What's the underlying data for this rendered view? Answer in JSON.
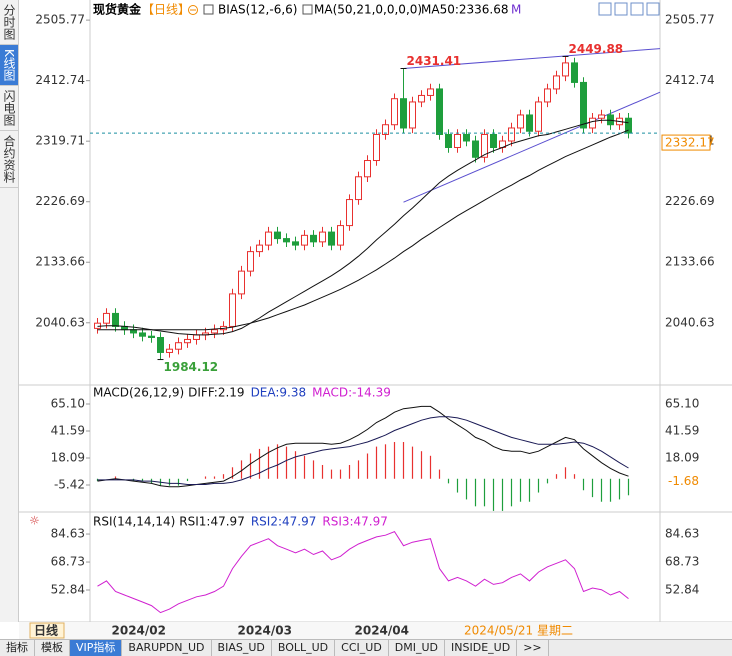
{
  "sidebar": [
    "分时图",
    "K线图",
    "闪电图",
    "合约资料"
  ],
  "header": {
    "symbol": "现货黄金",
    "period": "【日线】",
    "bias": "BIAS(12,-6,6)",
    "ma": "MA(50,21,0,0,0,0)",
    "ma50": "MA50:2336.68",
    "m": "M"
  },
  "chart_data": [
    {
      "type": "candlestick",
      "categories": [
        null,
        null,
        "2024/02",
        null,
        null,
        null,
        null,
        null,
        null,
        null,
        null,
        null,
        null,
        null,
        null,
        null,
        "2024/03",
        null,
        null,
        null,
        null,
        null,
        null,
        null,
        null,
        null,
        null,
        null,
        null,
        "2024/04",
        null,
        null,
        null,
        null,
        null,
        null,
        null,
        null,
        null,
        null,
        null,
        null,
        null,
        null,
        null,
        null,
        null,
        null,
        null,
        null,
        null,
        null,
        null,
        null,
        null,
        null,
        null,
        null,
        null,
        null
      ],
      "open": [
        2032,
        2040,
        2055,
        2035,
        2030,
        2025,
        2020,
        2018,
        1995,
        2000,
        2010,
        2015,
        2022,
        2025,
        2030,
        2035,
        2085,
        2120,
        2150,
        2160,
        2180,
        2170,
        2165,
        2160,
        2175,
        2165,
        2180,
        2160,
        2190,
        2230,
        2265,
        2290,
        2330,
        2345,
        2385,
        2340,
        2380,
        2390,
        2400,
        2330,
        2310,
        2330,
        2320,
        2295,
        2330,
        2310,
        2320,
        2340,
        2360,
        2335,
        2380,
        2400,
        2420,
        2440,
        2410,
        2340,
        2355,
        2360,
        2345,
        2355
      ],
      "high": [
        2048,
        2063,
        2063,
        2043,
        2038,
        2033,
        2028,
        2026,
        2008,
        2018,
        2023,
        2030,
        2033,
        2038,
        2043,
        2093,
        2128,
        2158,
        2168,
        2188,
        2188,
        2178,
        2173,
        2183,
        2183,
        2188,
        2188,
        2198,
        2238,
        2273,
        2298,
        2338,
        2353,
        2393,
        2431.41,
        2388,
        2398,
        2408,
        2408,
        2338,
        2338,
        2338,
        2328,
        2338,
        2338,
        2328,
        2348,
        2368,
        2368,
        2388,
        2408,
        2428,
        2449.88,
        2448,
        2418,
        2363,
        2368,
        2368,
        2363,
        2363
      ],
      "low": [
        2024,
        2032,
        2027,
        2022,
        2017,
        2012,
        2010,
        1984.12,
        1987,
        1992,
        2002,
        2007,
        2014,
        2017,
        2022,
        2027,
        2077,
        2112,
        2142,
        2152,
        2162,
        2157,
        2152,
        2152,
        2157,
        2157,
        2152,
        2152,
        2182,
        2222,
        2257,
        2282,
        2322,
        2337,
        2332,
        2332,
        2372,
        2382,
        2322,
        2302,
        2302,
        2312,
        2287,
        2287,
        2302,
        2302,
        2312,
        2332,
        2327,
        2327,
        2372,
        2392,
        2412,
        2402,
        2332,
        2332,
        2347,
        2337,
        2337,
        2324
      ],
      "close": [
        2040,
        2055,
        2035,
        2030,
        2025,
        2020,
        2018,
        1995,
        2000,
        2010,
        2015,
        2022,
        2025,
        2030,
        2035,
        2085,
        2120,
        2150,
        2160,
        2180,
        2170,
        2165,
        2160,
        2175,
        2165,
        2180,
        2160,
        2190,
        2230,
        2265,
        2290,
        2330,
        2345,
        2385,
        2340,
        2380,
        2390,
        2400,
        2330,
        2310,
        2330,
        2320,
        2295,
        2330,
        2310,
        2320,
        2340,
        2360,
        2335,
        2380,
        2400,
        2420,
        2440,
        2410,
        2340,
        2355,
        2360,
        2345,
        2355,
        2332.17
      ],
      "up_color": "#e8312f",
      "down_color": "#1e9e3c",
      "lines": [
        {
          "color": "#111111",
          "values": [
            2035,
            2036,
            2036,
            2035,
            2034,
            2032,
            2030,
            2028,
            2026,
            2024,
            2023,
            2022,
            2022,
            2023,
            2024,
            2027,
            2032,
            2040,
            2048,
            2057,
            2065,
            2073,
            2081,
            2089,
            2097,
            2105,
            2113,
            2122,
            2132,
            2143,
            2155,
            2168,
            2180,
            2192,
            2205,
            2217,
            2230,
            2243,
            2256,
            2266,
            2275,
            2283,
            2291,
            2299,
            2305,
            2310,
            2316,
            2320,
            2324,
            2328,
            2330,
            2334,
            2338,
            2342,
            2346,
            2350,
            2352,
            2352,
            2350,
            2348
          ]
        },
        {
          "color": "#111111",
          "values": [
            2030,
            2030,
            2030,
            2030,
            2030,
            2030,
            2030,
            2030,
            2030,
            2030,
            2030,
            2030,
            2030,
            2031,
            2032,
            2034,
            2037,
            2040,
            2044,
            2048,
            2053,
            2058,
            2063,
            2068,
            2074,
            2080,
            2086,
            2092,
            2099,
            2106,
            2114,
            2122,
            2131,
            2140,
            2150,
            2159,
            2169,
            2178,
            2187,
            2196,
            2205,
            2213,
            2221,
            2229,
            2237,
            2245,
            2252,
            2260,
            2267,
            2275,
            2282,
            2289,
            2296,
            2302,
            2308,
            2314,
            2320,
            2326,
            2331,
            2336.68
          ]
        }
      ],
      "trendlines": [
        {
          "color": "#5a4fcf",
          "x": [
            34,
            62.5
          ],
          "y": [
            2431.41,
            2462
          ]
        },
        {
          "color": "#5a4fcf",
          "x": [
            34,
            62.5
          ],
          "y": [
            2226,
            2395
          ]
        }
      ],
      "annotations": [
        {
          "text": "2431.41",
          "x": 34,
          "y": 2431.41,
          "color": "#e8312f",
          "position": "above"
        },
        {
          "text": "2449.88",
          "x": 52,
          "y": 2449.88,
          "color": "#e8312f",
          "position": "above"
        },
        {
          "text": "1984.12",
          "x": 7,
          "y": 1984.12,
          "color": "#3aa03a",
          "position": "below"
        }
      ],
      "last": 2332.17,
      "last_color": "#f08a00",
      "ylim": [
        1945,
        2529
      ],
      "yticks": [
        2505.77,
        2412.74,
        2319.71,
        2226.69,
        2133.66,
        2040.63
      ]
    },
    {
      "type": "macd",
      "title": "MACD(26,12,9)",
      "legend": [
        {
          "text": "DIFF:2.19",
          "color": "#111111"
        },
        {
          "text": "DEA:9.38",
          "color": "#1f3fbf"
        },
        {
          "text": "MACD:-14.39",
          "color": "#d020d0"
        }
      ],
      "series": [
        {
          "color": "#111111",
          "values": [
            -2,
            -1,
            0,
            -1,
            -2,
            -3,
            -4,
            -6,
            -7,
            -7,
            -6,
            -5,
            -4,
            -3,
            -2,
            2,
            7,
            13,
            18,
            23,
            27,
            30,
            31,
            31,
            31,
            31,
            30,
            31,
            34,
            38,
            43,
            49,
            53,
            58,
            61,
            62,
            63,
            63,
            58,
            52,
            47,
            42,
            36,
            33,
            28,
            25,
            24,
            24,
            22,
            24,
            28,
            32,
            36,
            34,
            26,
            20,
            14,
            9,
            5,
            2.19
          ]
        },
        {
          "color": "#1a1a55",
          "values": [
            -1,
            -1,
            -1,
            -1,
            -1,
            -2,
            -2,
            -3,
            -4,
            -4,
            -5,
            -5,
            -5,
            -4,
            -4,
            -3,
            -1,
            2,
            5,
            9,
            12,
            16,
            19,
            21,
            23,
            25,
            26,
            27,
            28,
            30,
            32,
            35,
            38,
            42,
            45,
            48,
            51,
            53,
            54,
            54,
            53,
            51,
            48,
            45,
            42,
            39,
            36,
            34,
            32,
            30,
            30,
            30,
            31,
            32,
            31,
            28,
            24,
            19,
            14,
            9.38
          ]
        }
      ],
      "histogram": {
        "up_color": "#e8312f",
        "down_color": "#1e9e3c",
        "values": [
          -2,
          0,
          2,
          0,
          -2,
          -2,
          -4,
          -6,
          -6,
          -6,
          -2,
          0,
          2,
          2,
          4,
          10,
          16,
          22,
          26,
          28,
          30,
          28,
          24,
          20,
          16,
          12,
          8,
          8,
          12,
          16,
          22,
          28,
          30,
          32,
          32,
          28,
          24,
          20,
          8,
          -4,
          -12,
          -18,
          -24,
          -24,
          -28,
          -28,
          -24,
          -20,
          -20,
          -12,
          -4,
          4,
          10,
          4,
          -10,
          -16,
          -20,
          -20,
          -18,
          -14.39
        ]
      },
      "last": -1.68,
      "last_color": "#f08a00",
      "ylim": [
        -27.2,
        71.2
      ],
      "yticks": [
        {
          "value": 65.1,
          "label": "65.10"
        },
        41.59,
        18.09,
        -5.42
      ]
    },
    {
      "type": "line",
      "title": "RSI(14,14,14)",
      "legend": [
        {
          "text": "RSI1:47.97",
          "color": "#111111"
        },
        {
          "text": "RSI2:47.97",
          "color": "#1f3fbf"
        },
        {
          "text": "RSI3:47.97",
          "color": "#d020d0"
        }
      ],
      "series": [
        {
          "color": "#d020d0",
          "values": [
            55,
            58,
            52,
            50,
            48,
            46,
            44,
            40,
            42,
            45,
            47,
            49,
            50,
            52,
            55,
            65,
            72,
            78,
            80,
            82,
            78,
            76,
            74,
            76,
            73,
            75,
            70,
            72,
            76,
            79,
            81,
            83,
            84,
            86,
            78,
            80,
            81,
            82,
            65,
            58,
            60,
            58,
            55,
            59,
            56,
            57,
            60,
            62,
            58,
            63,
            66,
            68,
            70,
            65,
            52,
            54,
            53,
            50,
            52,
            47.97
          ]
        }
      ],
      "ylim": [
        35.8,
        89.2
      ],
      "yticks": [
        84.63,
        68.73,
        52.84
      ]
    }
  ],
  "footer": {
    "period": "日线",
    "date": "2024/05/21 星期二",
    "tabs": [
      "指标",
      "模板",
      "VIP指标",
      "BARUPDN_UD",
      "BIAS_UD",
      "BOLL_UD",
      "CCI_UD",
      "DMI_UD",
      "INSIDE_UD",
      ">>"
    ]
  }
}
